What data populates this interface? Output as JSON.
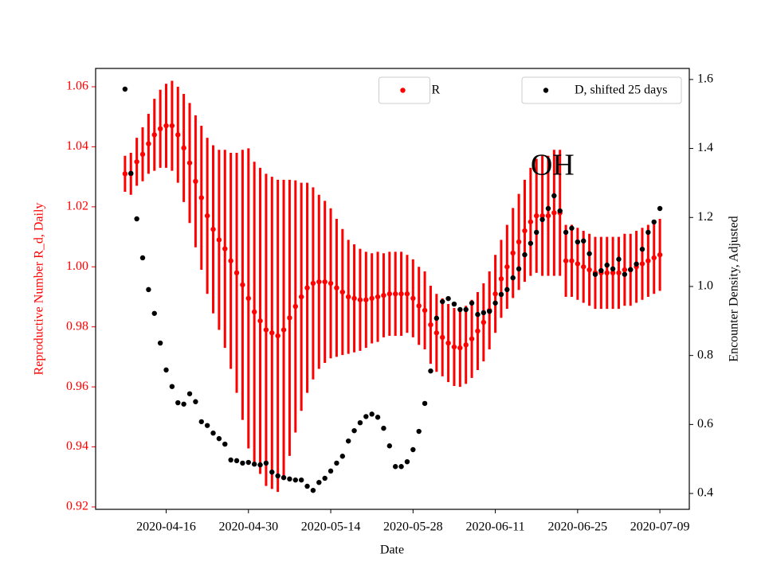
{
  "chart_data": {
    "type": "scatter",
    "x_label": "Date",
    "y_label": "Reproductive Number R_d, Daily",
    "y2_label": "Encounter Density, Adjusted",
    "annotation": {
      "text": "OH",
      "x": "2020-06-17",
      "y": 1.033
    },
    "x": [
      "2020-04-09",
      "2020-04-10",
      "2020-04-11",
      "2020-04-12",
      "2020-04-13",
      "2020-04-14",
      "2020-04-15",
      "2020-04-16",
      "2020-04-17",
      "2020-04-18",
      "2020-04-19",
      "2020-04-20",
      "2020-04-21",
      "2020-04-22",
      "2020-04-23",
      "2020-04-24",
      "2020-04-25",
      "2020-04-26",
      "2020-04-27",
      "2020-04-28",
      "2020-04-29",
      "2020-04-30",
      "2020-05-01",
      "2020-05-02",
      "2020-05-03",
      "2020-05-04",
      "2020-05-05",
      "2020-05-06",
      "2020-05-07",
      "2020-05-08",
      "2020-05-09",
      "2020-05-10",
      "2020-05-11",
      "2020-05-12",
      "2020-05-13",
      "2020-05-14",
      "2020-05-15",
      "2020-05-16",
      "2020-05-17",
      "2020-05-18",
      "2020-05-19",
      "2020-05-20",
      "2020-05-21",
      "2020-05-22",
      "2020-05-23",
      "2020-05-24",
      "2020-05-25",
      "2020-05-26",
      "2020-05-27",
      "2020-05-28",
      "2020-05-29",
      "2020-05-30",
      "2020-05-31",
      "2020-06-01",
      "2020-06-02",
      "2020-06-03",
      "2020-06-04",
      "2020-06-05",
      "2020-06-06",
      "2020-06-07",
      "2020-06-08",
      "2020-06-09",
      "2020-06-10",
      "2020-06-11",
      "2020-06-12",
      "2020-06-13",
      "2020-06-14",
      "2020-06-15",
      "2020-06-16",
      "2020-06-17",
      "2020-06-18",
      "2020-06-19",
      "2020-06-20",
      "2020-06-21",
      "2020-06-22",
      "2020-06-23",
      "2020-06-24",
      "2020-06-25",
      "2020-06-26",
      "2020-06-27",
      "2020-06-28",
      "2020-06-29",
      "2020-06-30",
      "2020-07-01",
      "2020-07-02",
      "2020-07-03",
      "2020-07-04",
      "2020-07-05",
      "2020-07-06",
      "2020-07-07",
      "2020-07-08",
      "2020-07-09"
    ],
    "xlim": [
      "2020-04-04",
      "2020-07-14"
    ],
    "xticks": [
      "2020-04-16",
      "2020-04-30",
      "2020-05-14",
      "2020-05-28",
      "2020-06-11",
      "2020-06-25",
      "2020-07-09"
    ],
    "ylim": [
      0.9192,
      1.0661
    ],
    "yticks": [
      0.92,
      0.94,
      0.96,
      0.98,
      {
        "value": 1,
        "label": "1.00"
      },
      1.02,
      1.04,
      1.06
    ],
    "y2lim": [
      0.354,
      1.632
    ],
    "y2ticks": [
      0.4,
      0.6,
      0.8,
      {
        "value": 1,
        "label": "1.0"
      },
      1.2,
      1.4,
      1.6
    ],
    "series": [
      {
        "name": "R",
        "color": "#ff0000",
        "legend_loc": "upper center",
        "values": [
          1.031,
          1.031,
          1.035,
          1.0375,
          1.041,
          1.044,
          1.046,
          1.047,
          1.047,
          1.044,
          1.0396,
          1.0346,
          1.0285,
          1.023,
          1.017,
          1.0125,
          1.009,
          1.006,
          1.002,
          0.998,
          0.994,
          0.9895,
          0.985,
          0.982,
          0.979,
          0.978,
          0.977,
          0.979,
          0.983,
          0.9868,
          0.99,
          0.993,
          0.9945,
          0.995,
          0.995,
          0.9945,
          0.993,
          0.9916,
          0.99,
          0.9895,
          0.989,
          0.989,
          0.9895,
          0.99,
          0.9905,
          0.991,
          0.991,
          0.991,
          0.991,
          0.9895,
          0.987,
          0.9855,
          0.9807,
          0.978,
          0.9765,
          0.9746,
          0.9733,
          0.973,
          0.974,
          0.976,
          0.9786,
          0.9815,
          0.9855,
          0.991,
          0.996,
          1.0,
          1.0046,
          1.0083,
          1.012,
          1.015,
          1.017,
          1.017,
          1.017,
          1.018,
          1.018,
          1.002,
          1.002,
          1.001,
          1.0,
          0.999,
          0.998,
          0.998,
          0.998,
          0.998,
          0.998,
          0.999,
          0.999,
          1.0,
          1.001,
          1.002,
          1.003,
          1.004
        ],
        "errors": [
          0.006,
          0.007,
          0.008,
          0.009,
          0.01,
          0.012,
          0.013,
          0.014,
          0.015,
          0.016,
          0.018,
          0.02,
          0.022,
          0.024,
          0.026,
          0.028,
          0.03,
          0.033,
          0.036,
          0.04,
          0.045,
          0.05,
          0.05,
          0.051,
          0.052,
          0.052,
          0.052,
          0.05,
          0.046,
          0.042,
          0.038,
          0.035,
          0.032,
          0.029,
          0.027,
          0.025,
          0.023,
          0.021,
          0.019,
          0.018,
          0.017,
          0.016,
          0.015,
          0.015,
          0.014,
          0.014,
          0.014,
          0.014,
          0.013,
          0.013,
          0.013,
          0.013,
          0.013,
          0.013,
          0.013,
          0.013,
          0.013,
          0.013,
          0.013,
          0.013,
          0.013,
          0.013,
          0.013,
          0.013,
          0.013,
          0.014,
          0.015,
          0.016,
          0.017,
          0.018,
          0.019,
          0.02,
          0.02,
          0.021,
          0.021,
          0.012,
          0.012,
          0.012,
          0.012,
          0.012,
          0.012,
          0.012,
          0.012,
          0.012,
          0.012,
          0.012,
          0.012,
          0.012,
          0.012,
          0.012,
          0.012,
          0.012
        ]
      },
      {
        "name": "D, shifted 25 days",
        "color": "#000000",
        "axis": "y2",
        "legend_loc": "upper right",
        "values": [
          1.572,
          1.328,
          1.196,
          1.083,
          0.991,
          0.922,
          0.836,
          0.758,
          0.71,
          0.663,
          0.659,
          0.689,
          0.666,
          0.608,
          0.597,
          0.575,
          0.559,
          0.543,
          0.497,
          0.495,
          0.488,
          0.49,
          0.485,
          0.483,
          0.488,
          0.462,
          0.451,
          0.446,
          0.442,
          0.439,
          0.439,
          0.421,
          0.409,
          0.432,
          0.444,
          0.465,
          0.488,
          0.508,
          0.552,
          0.582,
          0.605,
          0.623,
          0.63,
          0.621,
          0.589,
          0.538,
          0.478,
          0.478,
          0.492,
          0.527,
          0.58,
          0.661,
          0.755,
          0.908,
          0.956,
          0.965,
          0.949,
          0.933,
          0.933,
          0.952,
          0.919,
          0.924,
          0.928,
          0.952,
          0.977,
          0.991,
          1.025,
          1.051,
          1.092,
          1.125,
          1.157,
          1.194,
          1.226,
          1.263,
          1.219,
          1.157,
          1.169,
          1.129,
          1.132,
          1.095,
          1.035,
          1.046,
          1.062,
          1.051,
          1.079,
          1.035,
          1.049,
          1.065,
          1.108,
          1.157,
          1.187,
          1.226
        ]
      }
    ]
  }
}
